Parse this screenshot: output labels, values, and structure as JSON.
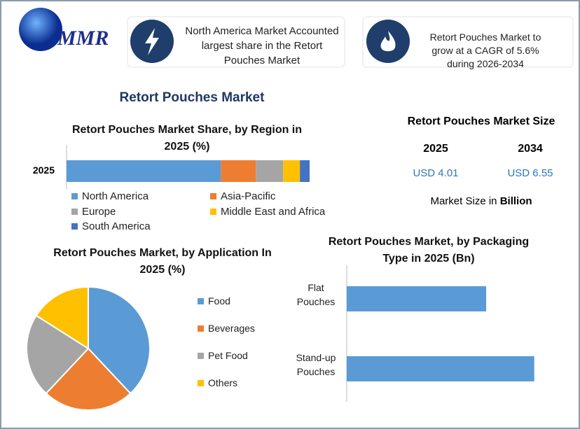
{
  "header": {
    "logo": "MMR",
    "box1": "North America Market Accounted largest share in the Retort Pouches Market",
    "box2": "Retort Pouches Market to grow at a CAGR of 5.6% during 2026-2034"
  },
  "main_title": "Retort Pouches Market",
  "market_size": {
    "title": "Retort Pouches Market Size",
    "years": [
      "2025",
      "2034"
    ],
    "values": [
      "USD 4.01",
      "USD 6.55"
    ],
    "note": "Market Size in",
    "unit": "Billion"
  },
  "chart_data": [
    {
      "type": "stacked-bar",
      "title": "Retort Pouches Market Share, by Region in 2025 (%)",
      "categories": [
        "2025"
      ],
      "xlim": [
        0,
        100
      ],
      "series": [
        {
          "name": "North America",
          "color": "#5b9bd5",
          "values": [
            63.5
          ]
        },
        {
          "name": "Asia-Pacific",
          "color": "#ed7d31",
          "values": [
            14.4
          ]
        },
        {
          "name": "Europe",
          "color": "#a5a5a5",
          "values": [
            11.2
          ]
        },
        {
          "name": "Middle East and Africa",
          "color": "#ffc000",
          "values": [
            6.9
          ]
        },
        {
          "name": "South America",
          "color": "#4472c4",
          "values": [
            4.0
          ]
        }
      ]
    },
    {
      "type": "pie",
      "title": "Retort Pouches Market, by Application In 2025 (%)",
      "categories": [
        "Food",
        "Beverages",
        "Pet Food",
        "Others"
      ],
      "values": [
        38,
        24,
        22,
        16
      ],
      "colors": [
        "#5b9bd5",
        "#ed7d31",
        "#a5a5a5",
        "#ffc000"
      ]
    },
    {
      "type": "hbar",
      "title": "Retort Pouches Market, by Packaging Type in 2025 (Bn)",
      "categories": [
        "Flat Pouches",
        "Stand-up Pouches"
      ],
      "values": [
        1.71,
        2.3
      ],
      "xlim": [
        0,
        2.5
      ],
      "color": "#5b9bd5"
    }
  ]
}
